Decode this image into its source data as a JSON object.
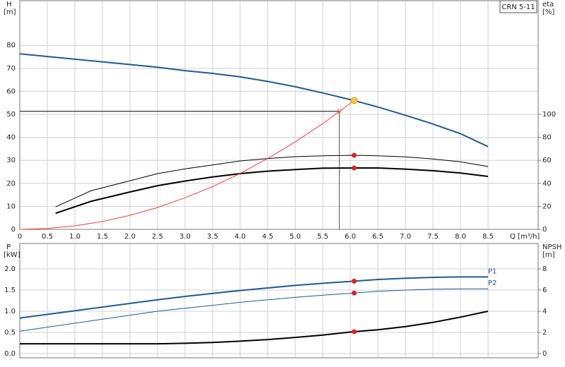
{
  "chart_data": [
    {
      "type": "line",
      "title": "CRN 5-11",
      "ylabel": "H",
      "yunit": "[m]",
      "y2label": "eta",
      "y2unit": "[%]",
      "xlabel": "Q [m³/h]",
      "xlim": [
        0,
        9.41
      ],
      "xticks": [
        0,
        0.5,
        {
          "value": 1,
          "label": "1.0"
        },
        1.5,
        {
          "value": 2,
          "label": "2.0"
        },
        2.5,
        {
          "value": 3,
          "label": "3.0"
        },
        3.5,
        {
          "value": 4,
          "label": "4.0"
        },
        4.5,
        {
          "value": 5,
          "label": "5.0"
        },
        5.5,
        {
          "value": 6,
          "label": "6.0"
        },
        6.5,
        {
          "value": 7,
          "label": "7.0"
        },
        7.5,
        {
          "value": 8,
          "label": "8.0"
        },
        8.5
      ],
      "ylim": [
        0,
        99.4
      ],
      "yticks": [
        0,
        10,
        20,
        30,
        40,
        50,
        60,
        70,
        80
      ],
      "y2lim": [
        0,
        198.8
      ],
      "y2ticks": [
        0,
        20,
        40,
        60,
        80,
        100
      ],
      "grid": true,
      "series": [
        {
          "color": "#1f5a99",
          "width": 2,
          "x": [
            0,
            2.5,
            3,
            3.5,
            4,
            4.5,
            5,
            5.5,
            6.07,
            6.5,
            7,
            7.5,
            8,
            8.5
          ],
          "values": [
            76.3,
            70.5,
            69,
            67.8,
            66.3,
            64.3,
            62,
            59.3,
            56,
            53.2,
            49.6,
            45.8,
            41.6,
            36
          ]
        },
        {
          "color": "#000000",
          "width": 1,
          "axis": "y2",
          "x": [
            0.65,
            1.3,
            2,
            2.5,
            3,
            3.5,
            4,
            4.5,
            5,
            5.5,
            6.07,
            6.5,
            7,
            7.5,
            8,
            8.5
          ],
          "values": [
            19.6,
            33.7,
            42.3,
            48.5,
            52.6,
            56,
            59.5,
            61.6,
            63.2,
            64,
            64.4,
            64,
            63,
            61.2,
            58.8,
            54.6
          ]
        },
        {
          "color": "#000000",
          "width": 2,
          "axis": "y2",
          "x": [
            0.65,
            1.3,
            2,
            2.5,
            3,
            3.5,
            4,
            4.5,
            5,
            5.5,
            6.07,
            6.5,
            7,
            7.5,
            8,
            8.5
          ],
          "values": [
            14,
            24.5,
            32.5,
            38,
            42,
            45.5,
            48.5,
            50.6,
            52,
            53.2,
            53.4,
            53.4,
            52.4,
            51,
            49,
            46
          ]
        },
        {
          "color": "#ff3b3b",
          "width": 1,
          "x": [
            0,
            0.5,
            1,
            1.5,
            2,
            2.5,
            3,
            3.5,
            4,
            4.5,
            5,
            5.5,
            6.07
          ],
          "values": [
            0,
            0.38,
            1.52,
            3.4,
            6.1,
            9.5,
            13.7,
            18.6,
            24.3,
            30.8,
            38,
            46,
            56
          ]
        }
      ],
      "points": [
        {
          "x": 6.07,
          "y": 56,
          "color": "#f7c948"
        },
        {
          "x": 6.07,
          "y": 64.4,
          "axis": "y2",
          "color": "#e02020"
        },
        {
          "x": 6.07,
          "y": 53.4,
          "axis": "y2",
          "color": "#e02020"
        }
      ],
      "reference": {
        "x": 5.8,
        "y": 51.3,
        "label": "D"
      }
    },
    {
      "type": "line",
      "ylabel": "P",
      "yunit": "[kW]",
      "y2label": "NPSH",
      "y2unit": "[m]",
      "ylim": [
        -0.1,
        2.6
      ],
      "yticks": [
        {
          "value": 0,
          "label": "0.0"
        },
        0.5,
        {
          "value": 1,
          "label": "1.0"
        },
        1.5,
        {
          "value": 2,
          "label": "2.0"
        }
      ],
      "y2lim": [
        -0.4,
        10.4
      ],
      "y2ticks": [
        0,
        2,
        4,
        6,
        8
      ],
      "grid": true,
      "series": [
        {
          "name": "P1",
          "color": "#1f5a99",
          "width": 2,
          "x": [
            0,
            2.5,
            3,
            3.5,
            4,
            4.5,
            5,
            5.5,
            6.07,
            6.5,
            7,
            7.5,
            8,
            8.5
          ],
          "values": [
            0.84,
            1.27,
            1.35,
            1.42,
            1.49,
            1.55,
            1.61,
            1.66,
            1.71,
            1.75,
            1.78,
            1.8,
            1.81,
            1.81
          ]
        },
        {
          "name": "P2",
          "color": "#1f5a99",
          "width": 1,
          "x": [
            0,
            2.5,
            3,
            3.5,
            4,
            4.5,
            5,
            5.5,
            6.07,
            6.5,
            7,
            7.5,
            8,
            8.5
          ],
          "values": [
            0.53,
            1,
            1.07,
            1.14,
            1.21,
            1.27,
            1.33,
            1.38,
            1.43,
            1.47,
            1.5,
            1.52,
            1.53,
            1.53
          ]
        },
        {
          "color": "#000000",
          "width": 2,
          "axis": "y2",
          "x": [
            0,
            2.5,
            3,
            3.5,
            4,
            4.5,
            5,
            5.5,
            6.07,
            6.5,
            7,
            7.5,
            8,
            8.5
          ],
          "values": [
            0.93,
            0.93,
            0.97,
            1.05,
            1.17,
            1.33,
            1.53,
            1.75,
            2.07,
            2.25,
            2.55,
            2.95,
            3.45,
            4
          ]
        }
      ],
      "points": [
        {
          "x": 6.07,
          "y": 1.71,
          "color": "#e02020"
        },
        {
          "x": 6.07,
          "y": 1.43,
          "color": "#e02020"
        },
        {
          "x": 6.07,
          "y": 2.07,
          "axis": "y2",
          "color": "#e02020"
        }
      ]
    }
  ]
}
